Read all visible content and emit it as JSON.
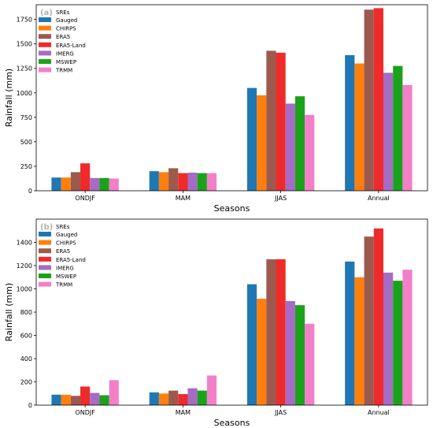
{
  "chart_data": [
    {
      "type": "bar",
      "panel_label": "(a)",
      "categories": [
        "ONDJF",
        "MAM",
        "JJAS",
        "Annual"
      ],
      "xlabel": "Seasons",
      "ylabel": "Rainfall (mm)",
      "ylim": [
        0,
        1900
      ],
      "yticks": [
        0,
        250,
        500,
        750,
        1000,
        1250,
        1500,
        1750
      ],
      "legend_title": "SREs",
      "legend_position": "top-left",
      "series": [
        {
          "name": "Gauged",
          "color": "#1f77b4",
          "values": [
            135,
            200,
            1050,
            1385
          ]
        },
        {
          "name": "CHIRPS",
          "color": "#ff7f0e",
          "values": [
            135,
            190,
            975,
            1300
          ]
        },
        {
          "name": "ERA5",
          "color": "#9c5a4f",
          "values": [
            190,
            230,
            1430,
            1850
          ]
        },
        {
          "name": "ERA5-Land",
          "color": "#ef2a2a",
          "values": [
            280,
            180,
            1410,
            1865
          ]
        },
        {
          "name": "IMERG",
          "color": "#a66bc4",
          "values": [
            130,
            185,
            890,
            1205
          ]
        },
        {
          "name": "MSWEP",
          "color": "#1aa31a",
          "values": [
            130,
            180,
            965,
            1275
          ]
        },
        {
          "name": "TRMM",
          "color": "#f47fc9",
          "values": [
            125,
            180,
            775,
            1080
          ]
        }
      ]
    },
    {
      "type": "bar",
      "panel_label": "(b)",
      "categories": [
        "ONDJF",
        "MAM",
        "JJAS",
        "Annual"
      ],
      "xlabel": "Seasons",
      "ylabel": "Rainfall (mm)",
      "ylim": [
        0,
        1600
      ],
      "yticks": [
        0,
        200,
        400,
        600,
        800,
        1000,
        1200,
        1400
      ],
      "legend_title": "SREs",
      "legend_position": "top-left",
      "series": [
        {
          "name": "Gauged",
          "color": "#1f77b4",
          "values": [
            90,
            110,
            1040,
            1235
          ]
        },
        {
          "name": "CHIRPS",
          "color": "#ff7f0e",
          "values": [
            90,
            100,
            915,
            1100
          ]
        },
        {
          "name": "ERA5",
          "color": "#9c5a4f",
          "values": [
            80,
            125,
            1255,
            1450
          ]
        },
        {
          "name": "ERA5-Land",
          "color": "#ef2a2a",
          "values": [
            160,
            95,
            1255,
            1520
          ]
        },
        {
          "name": "IMERG",
          "color": "#a66bc4",
          "values": [
            105,
            145,
            895,
            1140
          ]
        },
        {
          "name": "MSWEP",
          "color": "#1aa31a",
          "values": [
            85,
            125,
            860,
            1070
          ]
        },
        {
          "name": "TRMM",
          "color": "#f47fc9",
          "values": [
            215,
            255,
            700,
            1165
          ]
        }
      ]
    }
  ]
}
